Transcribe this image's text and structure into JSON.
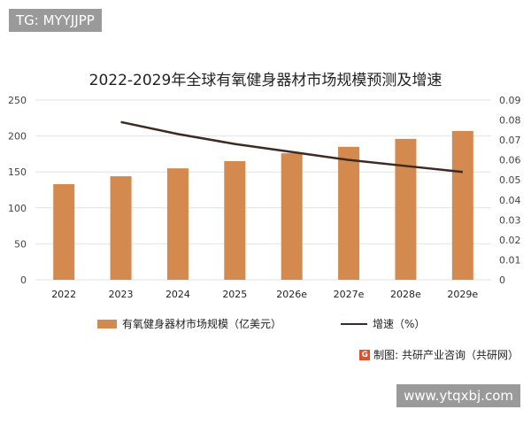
{
  "watermark_top": "TG: MYYJJPP",
  "watermark_bottom": "www.ytqxbj.com",
  "source": "制图: 共研产业咨询（共研网）",
  "source_logo": "G",
  "chart_data": {
    "type": "bar",
    "title": "2022-2029年全球有氧健身器材市场规模预测及增速",
    "categories": [
      "2022",
      "2023",
      "2024",
      "2025",
      "2026e",
      "2027e",
      "2028e",
      "2029e"
    ],
    "series": [
      {
        "name": "有氧健身器材市场规模（亿美元）",
        "type": "bar",
        "axis": "left",
        "color": "#d48a4e",
        "values": [
          133,
          144,
          155,
          165,
          176,
          185,
          196,
          207
        ]
      },
      {
        "name": "增速（%）",
        "type": "line",
        "axis": "right",
        "color": "#3e2a22",
        "values": [
          null,
          0.079,
          0.073,
          0.068,
          0.064,
          0.06,
          0.057,
          0.054
        ]
      }
    ],
    "left_axis": {
      "range": [
        0,
        250
      ],
      "ticks": [
        "0",
        "50",
        "100",
        "150",
        "200",
        "250"
      ]
    },
    "right_axis": {
      "range": [
        0,
        0.09
      ],
      "ticks": [
        "0",
        "0.01",
        "0.02",
        "0.03",
        "0.04",
        "0.05",
        "0.06",
        "0.07",
        "0.08",
        "0.09"
      ]
    },
    "grid": true,
    "legend_position": "bottom"
  }
}
